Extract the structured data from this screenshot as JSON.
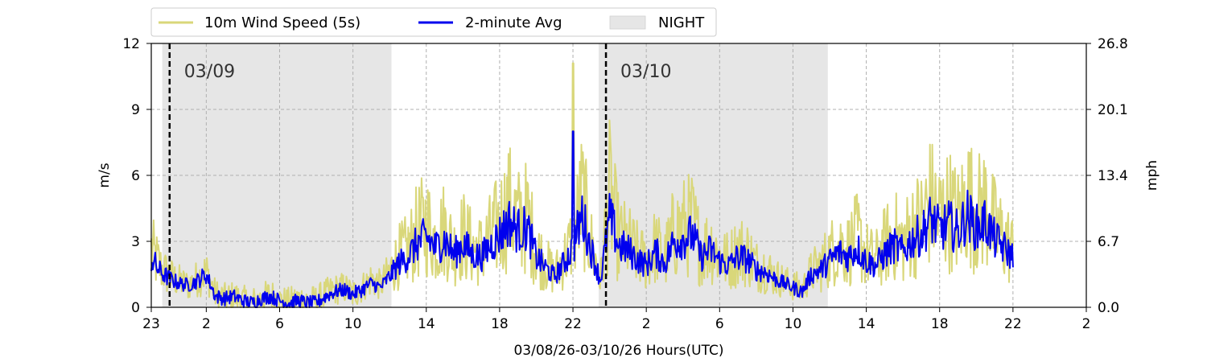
{
  "chart_data": {
    "type": "line",
    "title": "",
    "xlabel": "03/08/26-03/10/26  Hours(UTC)",
    "ylabel": "m/s",
    "ylabel_right": "mph",
    "x_unit": "hours since 03/08/26 23:00 UTC",
    "xlim": [
      0,
      51
    ],
    "ylim": [
      0,
      12
    ],
    "ylim_right": [
      0.0,
      26.8
    ],
    "x_ticks": [
      {
        "x": 0,
        "label": "23"
      },
      {
        "x": 3,
        "label": "2"
      },
      {
        "x": 7,
        "label": "6"
      },
      {
        "x": 11,
        "label": "10"
      },
      {
        "x": 15,
        "label": "14"
      },
      {
        "x": 19,
        "label": "18"
      },
      {
        "x": 23,
        "label": "22"
      },
      {
        "x": 27,
        "label": "2"
      },
      {
        "x": 31,
        "label": "6"
      },
      {
        "x": 35,
        "label": "10"
      },
      {
        "x": 39,
        "label": "14"
      },
      {
        "x": 43,
        "label": "18"
      },
      {
        "x": 47,
        "label": "22"
      },
      {
        "x": 51,
        "label": "2"
      }
    ],
    "y_ticks": [
      0,
      3,
      6,
      9,
      12
    ],
    "y_ticks_right": [
      "0.0",
      "6.7",
      "13.4",
      "20.1",
      "26.8"
    ],
    "grid": true,
    "legend_position": "top, above plot",
    "night_periods": [
      [
        0.6,
        13.1
      ],
      [
        24.4,
        36.9
      ]
    ],
    "day_boundaries": [
      {
        "x": 1.0,
        "label": "03/09"
      },
      {
        "x": 24.8,
        "label": "03/10"
      }
    ],
    "legend": [
      {
        "label": "10m Wind Speed (5s)",
        "color": "#d9d77a",
        "kind": "line"
      },
      {
        "label": "2-minute Avg",
        "color": "#0000ee",
        "kind": "line"
      },
      {
        "label": "NIGHT",
        "color": "#e6e6e6",
        "kind": "patch"
      }
    ],
    "series": [
      {
        "name": "10m Wind Speed (5s)",
        "color": "#d9d77a",
        "x": [
          0,
          0.5,
          1,
          1.5,
          2,
          2.5,
          3,
          3.5,
          4,
          4.5,
          5,
          5.5,
          6,
          6.5,
          7,
          7.5,
          8,
          8.5,
          9,
          9.5,
          10,
          10.5,
          11,
          11.5,
          12,
          12.5,
          13,
          13.5,
          14,
          14.5,
          15,
          15.5,
          16,
          16.5,
          17,
          17.5,
          18,
          18.5,
          19,
          19.5,
          20,
          20.5,
          21,
          21.5,
          22,
          22.5,
          23,
          23.5,
          24,
          24.5,
          25,
          25.5,
          26,
          26.5,
          27,
          27.5,
          28,
          28.5,
          29,
          29.5,
          30,
          30.5,
          31,
          31.5,
          32,
          32.5,
          33,
          33.5,
          34,
          34.5,
          35,
          35.5,
          36,
          36.5,
          37,
          37.5,
          38,
          38.5,
          39,
          39.5,
          40,
          40.5,
          41,
          41.5,
          42,
          42.5,
          43,
          43.5,
          44,
          44.5,
          45,
          45.5,
          46,
          46.5,
          47
        ],
        "values": [
          2.6,
          1.8,
          1.4,
          1.2,
          1.0,
          1.3,
          1.6,
          0.6,
          0.4,
          0.5,
          0.3,
          0.2,
          0.4,
          0.6,
          0.3,
          0.2,
          0.4,
          0.3,
          0.3,
          0.6,
          0.8,
          0.9,
          0.6,
          0.9,
          1.3,
          1.0,
          1.6,
          2.3,
          2.6,
          3.4,
          3.8,
          3.0,
          3.6,
          2.6,
          3.3,
          2.7,
          2.6,
          3.2,
          3.8,
          4.6,
          3.9,
          4.1,
          2.6,
          2.0,
          1.5,
          2.2,
          3.0,
          5.0,
          2.8,
          1.2,
          5.2,
          3.1,
          2.9,
          2.4,
          2.1,
          2.8,
          2.2,
          3.4,
          3.6,
          3.8,
          2.6,
          2.9,
          2.3,
          2.1,
          2.6,
          2.5,
          1.9,
          1.8,
          1.4,
          1.2,
          1.0,
          0.8,
          1.6,
          1.9,
          2.4,
          2.9,
          2.6,
          3.2,
          2.4,
          2.1,
          2.8,
          3.3,
          2.9,
          3.6,
          3.9,
          4.8,
          4.1,
          4.5,
          3.9,
          5.0,
          4.2,
          4.6,
          3.6,
          3.1,
          2.6
        ]
      },
      {
        "name": "2-minute Avg",
        "color": "#0000ee",
        "x": [
          0,
          0.5,
          1,
          1.5,
          2,
          2.5,
          3,
          3.5,
          4,
          4.5,
          5,
          5.5,
          6,
          6.5,
          7,
          7.5,
          8,
          8.5,
          9,
          9.5,
          10,
          10.5,
          11,
          11.5,
          12,
          12.5,
          13,
          13.5,
          14,
          14.5,
          15,
          15.5,
          16,
          16.5,
          17,
          17.5,
          18,
          18.5,
          19,
          19.5,
          20,
          20.5,
          21,
          21.5,
          22,
          22.5,
          23,
          23.5,
          24,
          24.5,
          25,
          25.5,
          26,
          26.5,
          27,
          27.5,
          28,
          28.5,
          29,
          29.5,
          30,
          30.5,
          31,
          31.5,
          32,
          32.5,
          33,
          33.5,
          34,
          34.5,
          35,
          35.5,
          36,
          36.5,
          37,
          37.5,
          38,
          38.5,
          39,
          39.5,
          40,
          40.5,
          41,
          41.5,
          42,
          42.5,
          43,
          43.5,
          44,
          44.5,
          45,
          45.5,
          46,
          46.5,
          47
        ],
        "values": [
          2.2,
          1.6,
          1.3,
          1.1,
          1.0,
          1.2,
          1.5,
          0.5,
          0.4,
          0.5,
          0.3,
          0.2,
          0.4,
          0.5,
          0.3,
          0.2,
          0.3,
          0.2,
          0.2,
          0.5,
          0.7,
          0.8,
          0.6,
          0.8,
          1.1,
          0.9,
          1.4,
          2.0,
          2.3,
          2.9,
          3.2,
          2.7,
          3.1,
          2.4,
          2.9,
          2.4,
          2.3,
          2.8,
          3.3,
          3.9,
          3.5,
          3.6,
          2.3,
          1.8,
          1.4,
          2.0,
          2.7,
          4.2,
          2.6,
          1.2,
          4.1,
          2.8,
          2.6,
          2.2,
          1.9,
          2.5,
          2.0,
          3.0,
          3.1,
          3.3,
          2.3,
          2.6,
          2.1,
          1.9,
          2.3,
          2.2,
          1.7,
          1.6,
          1.3,
          1.1,
          0.9,
          0.7,
          1.5,
          1.7,
          2.1,
          2.5,
          2.3,
          2.7,
          2.1,
          1.9,
          2.4,
          2.8,
          2.5,
          3.1,
          3.3,
          4.0,
          3.5,
          3.8,
          3.4,
          4.2,
          3.6,
          3.9,
          3.1,
          2.7,
          2.3
        ]
      }
    ],
    "spike": {
      "x": 23.0,
      "speed": 11.1,
      "avg": 8.0
    }
  }
}
